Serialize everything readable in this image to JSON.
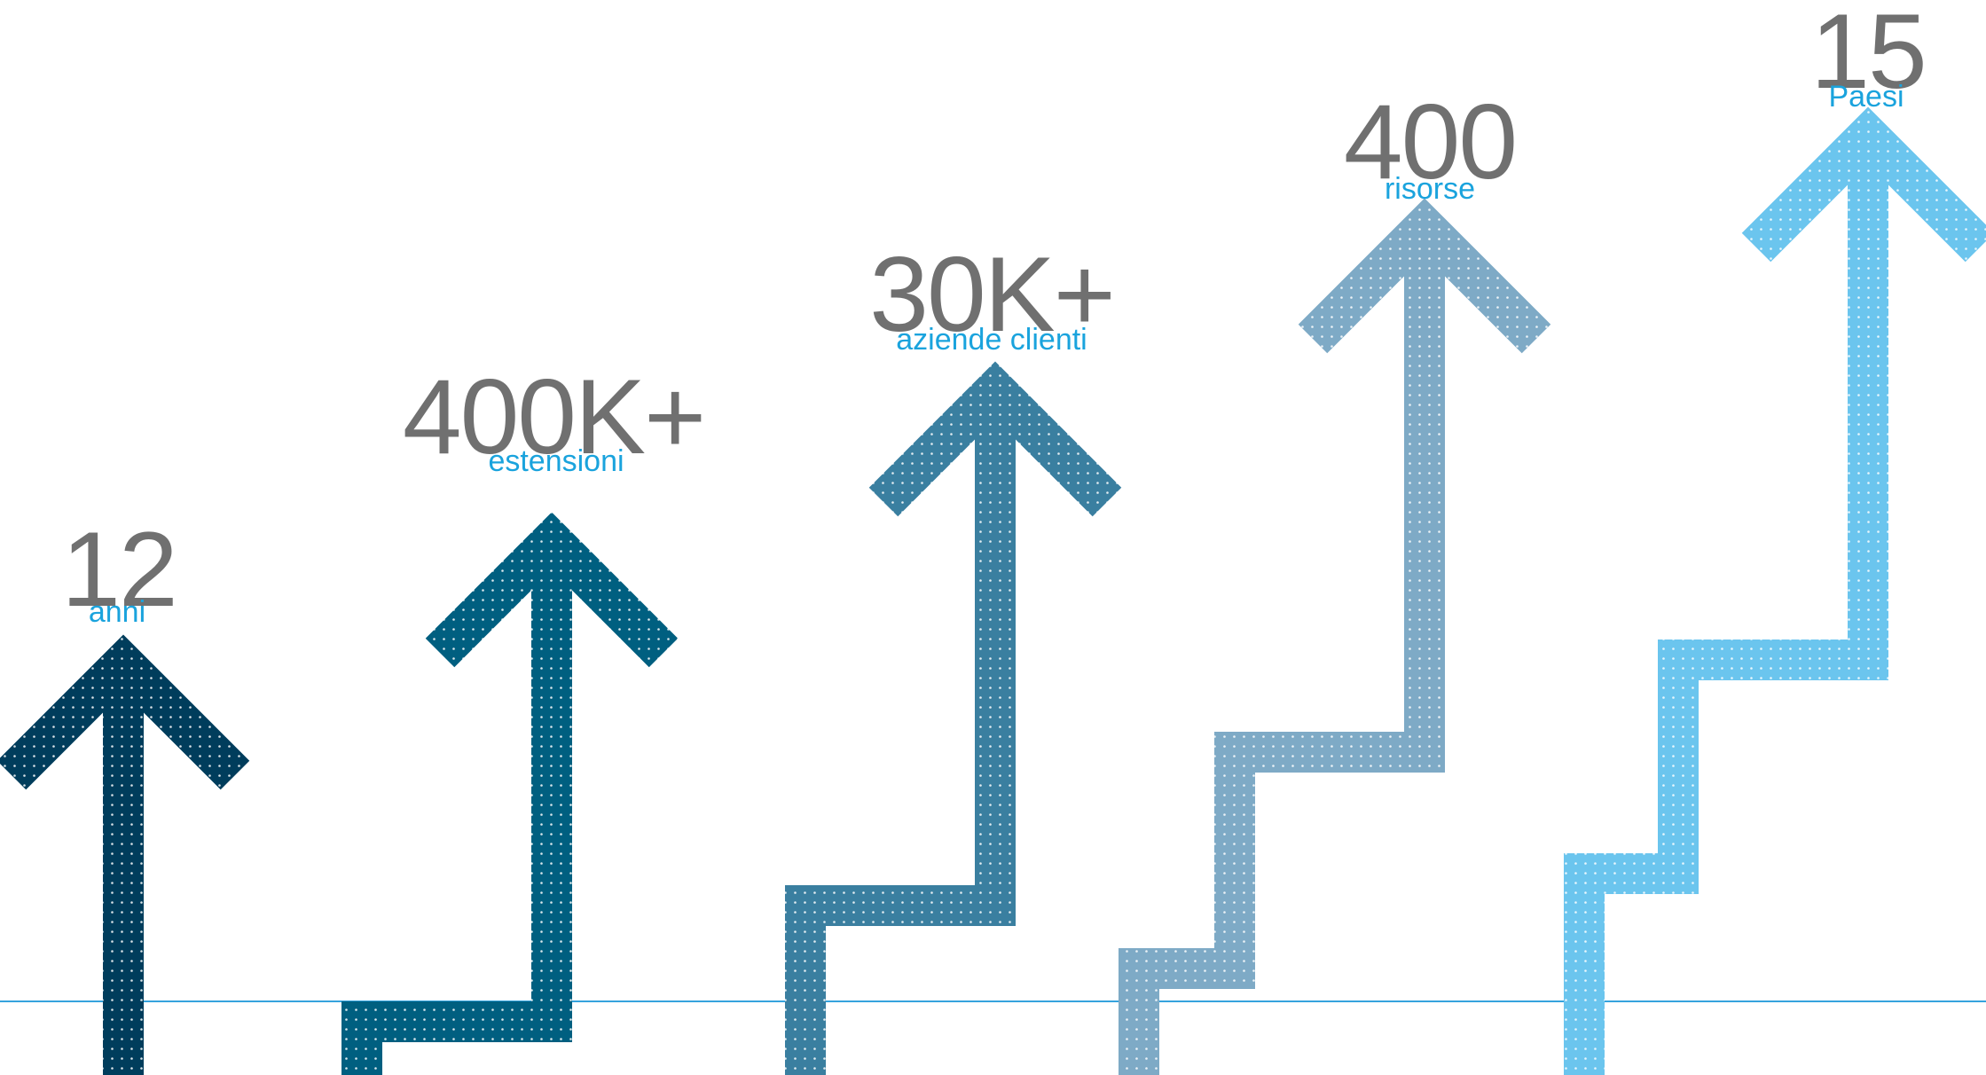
{
  "colors": {
    "label_text": "#1aa3dd",
    "value_text": "#707070",
    "baseline": "#36a3dd",
    "dots": "#ffffff"
  },
  "stats": [
    {
      "value": "12",
      "label": "anni",
      "color": "#003d5c",
      "steps": 0
    },
    {
      "value": "400K+",
      "label": "estensioni",
      "color": "#005f80",
      "steps": 1
    },
    {
      "value": "30K+",
      "label": "aziende clienti",
      "color": "#3a7fa0",
      "steps": 1
    },
    {
      "value": "400",
      "label": "risorse",
      "color": "#7eaac6",
      "steps": 2
    },
    {
      "value": "15",
      "label": "Paesi",
      "color": "#6bc5ee",
      "steps": 2
    }
  ]
}
